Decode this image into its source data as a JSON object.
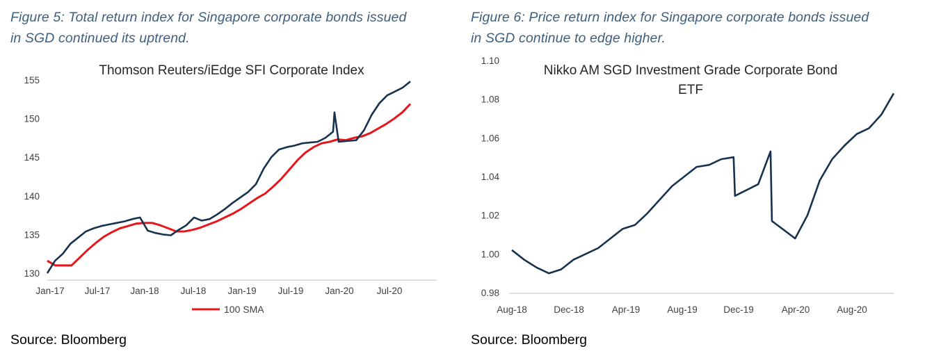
{
  "fig5": {
    "caption_line1": "Figure 5: Total return index for Singapore corporate bonds issued",
    "caption_line2": "in SGD continued its uptrend.",
    "source": "Source: Bloomberg"
  },
  "fig6": {
    "caption_line1": "Figure 6: Price return index for Singapore corporate bonds issued",
    "caption_line2": "in SGD continue to edge higher.",
    "source": "Source: Bloomberg"
  },
  "colors": {
    "index_line": "#17324f",
    "sma_line": "#e8151b",
    "axis": "#bfbfbf",
    "caption": "#3f5f7f"
  },
  "chart_data": [
    {
      "type": "line",
      "title": "Thomson Reuters/iEdge SFI Corporate Index",
      "xlabel": "",
      "ylabel": "",
      "x_tick_labels": [
        "Jan-17",
        "Jul-17",
        "Jan-18",
        "Jul-18",
        "Jan-19",
        "Jul-19",
        "Jan-20",
        "Jul-20"
      ],
      "xlim": [
        "2017-01",
        "2020-12"
      ],
      "ylim": [
        130,
        155
      ],
      "y_ticks": [
        130,
        135,
        140,
        145,
        150,
        155
      ],
      "grid": false,
      "legend": "bottom",
      "series": [
        {
          "name": "",
          "color": "#17324f",
          "x": [
            "2017-01",
            "2017-02",
            "2017-03",
            "2017-04",
            "2017-05",
            "2017-06",
            "2017-07",
            "2017-08",
            "2017-09",
            "2017-10",
            "2017-11",
            "2017-12",
            "2018-01",
            "2018-02",
            "2018-03",
            "2018-04",
            "2018-05",
            "2018-06",
            "2018-07",
            "2018-08",
            "2018-09",
            "2018-10",
            "2018-11",
            "2018-12",
            "2019-01",
            "2019-02",
            "2019-03",
            "2019-04",
            "2019-05",
            "2019-06",
            "2019-07",
            "2019-08",
            "2019-09",
            "2019-10",
            "2019-11",
            "2019-12",
            "2020-01",
            "2020-02",
            "2020-02b",
            "2020-03",
            "2020-03b",
            "2020-04",
            "2020-05",
            "2020-06",
            "2020-07",
            "2020-08",
            "2020-09",
            "2020-10"
          ],
          "values": [
            130.0,
            131.6,
            132.5,
            133.8,
            134.6,
            135.4,
            135.8,
            136.1,
            136.3,
            136.5,
            136.7,
            137.0,
            137.2,
            135.5,
            135.2,
            135.0,
            134.9,
            135.6,
            136.2,
            137.2,
            136.8,
            137.0,
            137.6,
            138.3,
            139.1,
            139.8,
            140.5,
            141.5,
            143.5,
            145.0,
            146.0,
            146.3,
            146.5,
            146.8,
            146.9,
            147.0,
            147.5,
            148.3,
            150.8,
            147.0,
            147.2,
            148.5,
            150.5,
            152.0,
            153.0,
            153.5,
            154.0,
            154.8
          ]
        },
        {
          "name": "100 SMA",
          "color": "#e8151b",
          "x": [
            "2017-01",
            "2017-02",
            "2017-03",
            "2017-04",
            "2017-05",
            "2017-06",
            "2017-07",
            "2017-08",
            "2017-09",
            "2017-10",
            "2017-11",
            "2017-12",
            "2018-01",
            "2018-02",
            "2018-03",
            "2018-04",
            "2018-05",
            "2018-06",
            "2018-07",
            "2018-08",
            "2018-09",
            "2018-10",
            "2018-11",
            "2018-12",
            "2019-01",
            "2019-02",
            "2019-03",
            "2019-04",
            "2019-05",
            "2019-06",
            "2019-07",
            "2019-08",
            "2019-09",
            "2019-10",
            "2019-11",
            "2019-12",
            "2020-01",
            "2020-02",
            "2020-03",
            "2020-04",
            "2020-05",
            "2020-06",
            "2020-07",
            "2020-08",
            "2020-09",
            "2020-10"
          ],
          "values": [
            131.6,
            131.0,
            131.0,
            131.0,
            132.0,
            133.0,
            133.9,
            134.7,
            135.3,
            135.8,
            136.1,
            136.4,
            136.5,
            136.5,
            136.2,
            135.8,
            135.4,
            135.4,
            135.6,
            135.9,
            136.3,
            136.7,
            137.2,
            137.7,
            138.3,
            139.0,
            139.7,
            140.3,
            141.2,
            142.2,
            143.4,
            144.6,
            145.6,
            146.3,
            146.8,
            147.0,
            147.3,
            147.2,
            147.5,
            147.7,
            148.1,
            148.7,
            149.3,
            150.0,
            150.8,
            151.9
          ]
        }
      ]
    },
    {
      "type": "line",
      "title": "Nikko AM SGD Investment Grade Corporate Bond ETF",
      "xlabel": "",
      "ylabel": "",
      "x_tick_labels": [
        "Aug-18",
        "Dec-18",
        "Apr-19",
        "Aug-19",
        "Dec-19",
        "Apr-20",
        "Aug-20"
      ],
      "xlim": [
        "2018-08",
        "2020-11"
      ],
      "ylim": [
        0.98,
        1.1
      ],
      "y_ticks": [
        0.98,
        1.0,
        1.02,
        1.04,
        1.06,
        1.08,
        1.1
      ],
      "grid": false,
      "legend": "none",
      "series": [
        {
          "name": "",
          "color": "#17324f",
          "x": [
            "2018-08",
            "2018-08b",
            "2018-09",
            "2018-10",
            "2018-11",
            "2018-12",
            "2019-01",
            "2019-02",
            "2019-03",
            "2019-04",
            "2019-05",
            "2019-06",
            "2019-07",
            "2019-08",
            "2019-09",
            "2019-10",
            "2019-11",
            "2019-12",
            "2020-01",
            "2020-01b",
            "2020-02",
            "2020-02b",
            "2020-03",
            "2020-03b",
            "2020-04",
            "2020-05",
            "2020-06",
            "2020-07",
            "2020-08",
            "2020-09",
            "2020-10",
            "2020-11"
          ],
          "values": [
            1.002,
            0.997,
            0.993,
            0.99,
            0.992,
            0.997,
            1.0,
            1.003,
            1.008,
            1.013,
            1.015,
            1.021,
            1.028,
            1.035,
            1.04,
            1.045,
            1.046,
            1.049,
            1.05,
            1.03,
            1.036,
            1.053,
            1.017,
            1.008,
            1.02,
            1.038,
            1.049,
            1.056,
            1.062,
            1.065,
            1.072,
            1.083
          ]
        }
      ]
    }
  ]
}
